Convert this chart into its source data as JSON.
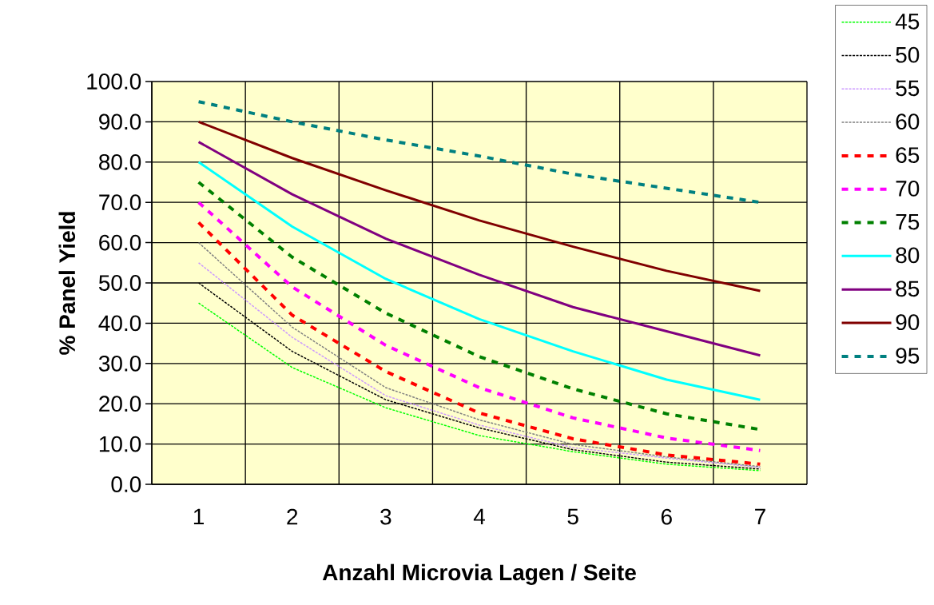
{
  "chart_data": {
    "type": "line",
    "xlabel": "Anzahl Microvia Lagen / Seite",
    "ylabel": "% Panel  Yield",
    "categories": [
      "1",
      "2",
      "3",
      "4",
      "5",
      "6",
      "7"
    ],
    "ylim": [
      0,
      100
    ],
    "yticks": [
      {
        "value": 0,
        "label": "0.0"
      },
      {
        "value": 10,
        "label": "10.0"
      },
      {
        "value": 20,
        "label": "20.0"
      },
      {
        "value": 30,
        "label": "30.0"
      },
      {
        "value": 40,
        "label": "40.0"
      },
      {
        "value": 50,
        "label": "50.0"
      },
      {
        "value": 60,
        "label": "60.0"
      },
      {
        "value": 70,
        "label": "70.0"
      },
      {
        "value": 80,
        "label": "80.0"
      },
      {
        "value": 90,
        "label": "90.0"
      },
      {
        "value": 100,
        "label": "100.0"
      }
    ],
    "grid": true,
    "legend": "right",
    "marker": "none",
    "series": [
      {
        "name": "45",
        "color": "#00ff00",
        "line_style": "dotted",
        "values": [
          45,
          29,
          19,
          12.1,
          8.1,
          5.0,
          3.4
        ]
      },
      {
        "name": "50",
        "color": "#000000",
        "line_style": "dotted",
        "values": [
          50,
          33,
          21,
          14,
          8.6,
          5.5,
          3.8
        ]
      },
      {
        "name": "55",
        "color": "#cc99ff",
        "line_style": "dotted",
        "values": [
          55,
          36.5,
          22,
          14.7,
          9.1,
          6.5,
          4.2
        ]
      },
      {
        "name": "60",
        "color": "#808080",
        "line_style": "dotted",
        "values": [
          60,
          39,
          24,
          16,
          9.9,
          6.8,
          4.4
        ]
      },
      {
        "name": "65",
        "color": "#ff0000",
        "line_style": "dashed",
        "values": [
          65,
          42,
          28,
          17.7,
          11.3,
          7.3,
          5
        ]
      },
      {
        "name": "70",
        "color": "#ff00ff",
        "line_style": "dashed",
        "values": [
          70,
          49,
          34.5,
          24,
          16.5,
          11.5,
          8.4
        ]
      },
      {
        "name": "75",
        "color": "#008000",
        "line_style": "dashed",
        "values": [
          75,
          56.4,
          42.5,
          31.7,
          23.7,
          17.5,
          13.6
        ]
      },
      {
        "name": "80",
        "color": "#00ffff",
        "line_style": "solid",
        "values": [
          80,
          64,
          51,
          41,
          33,
          26,
          21
        ]
      },
      {
        "name": "85",
        "color": "#800080",
        "line_style": "solid",
        "values": [
          85,
          72,
          61,
          52,
          44,
          38,
          32
        ]
      },
      {
        "name": "90",
        "color": "#800000",
        "line_style": "solid",
        "values": [
          90,
          81,
          73,
          65.5,
          59,
          53,
          48
        ]
      },
      {
        "name": "95",
        "color": "#008080",
        "line_style": "dashed",
        "values": [
          95,
          90,
          85.5,
          81.5,
          77,
          73.5,
          70
        ]
      }
    ]
  }
}
